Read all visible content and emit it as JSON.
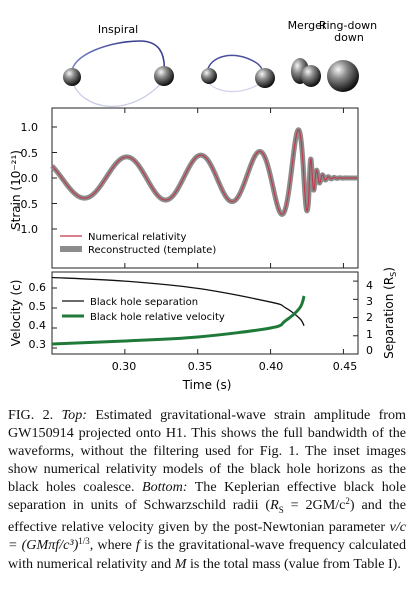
{
  "figure": {
    "insets": [
      "Inspiral",
      "Merger",
      "Ring-down"
    ],
    "top_panel": {
      "ylabel": "Strain (10⁻²¹)",
      "yticks": [
        "1.0",
        "0.5",
        "0.0",
        "-0.5",
        "-1.0"
      ],
      "legend": [
        "Numerical relativity",
        "Reconstructed (template)"
      ]
    },
    "bottom_panel": {
      "ylabel_left": "Velocity (c)",
      "ylabel_right": "Separation (R",
      "ylabel_right_sub": "S",
      "ylabel_right_end": ")",
      "yticks_left": [
        "0.6",
        "0.5",
        "0.4",
        "0.3"
      ],
      "yticks_right": [
        "4",
        "3",
        "2",
        "1",
        "0"
      ],
      "legend": [
        "Black hole separation",
        "Black hole relative velocity"
      ]
    },
    "xticks": [
      "0.30",
      "0.35",
      "0.40",
      "0.45"
    ],
    "xlabel": "Time (s)"
  },
  "caption": {
    "label": "FIG. 2.",
    "top_word": "Top:",
    "part1": "Estimated gravitational-wave strain amplitude from GW150914 projected onto H1. This shows the full bandwidth of the waveforms, without the filtering used for Fig. 1. The inset images show numerical relativity models of the black hole horizons as the black holes coalesce.",
    "bottom_word": "Bottom:",
    "part2": "The Keplerian effective black hole separation in units of Schwarzschild radii (",
    "rs_def": "R",
    "rs_sub": "S",
    "rs_eq": " = 2GM/c",
    "part3": ") and the effective relative velocity given by the post-Newtonian parameter ",
    "vc": "v/c = (GMπf/c³)",
    "exp": "1/3",
    "part4": ", where ",
    "f": "f",
    "part5": " is the gravitational-wave frequency calculated with numerical relativity and ",
    "M": "M",
    "part6": " is the total mass (value from Table I)."
  },
  "chart_data": [
    {
      "type": "line",
      "title": "",
      "xlabel": "",
      "ylabel": "Strain (10⁻²¹)",
      "xlim": [
        0.25,
        0.46
      ],
      "ylim": [
        -1.4,
        1.3
      ],
      "series": [
        {
          "name": "Numerical relativity",
          "color": "#c0384b",
          "description_points": {
            "x": [
              0.25,
              0.3,
              0.35,
              0.4,
              0.42,
              0.423,
              0.43,
              0.44,
              0.46
            ],
            "amplitude": [
              0.38,
              0.42,
              0.48,
              0.7,
              1.0,
              1.05,
              0.3,
              0.02,
              0.0
            ]
          }
        },
        {
          "name": "Reconstructed (template)",
          "color": "#8c8c8c",
          "description_points": {
            "x": [
              0.25,
              0.3,
              0.35,
              0.4,
              0.42,
              0.423,
              0.43,
              0.44,
              0.46
            ],
            "amplitude": [
              0.38,
              0.42,
              0.48,
              0.7,
              1.0,
              1.05,
              0.3,
              0.02,
              0.0
            ]
          }
        }
      ]
    },
    {
      "type": "line",
      "title": "",
      "xlabel": "Time (s)",
      "ylabel": "Velocity (c)",
      "ylabel_right": "Separation (RS)",
      "xlim": [
        0.25,
        0.46
      ],
      "ylim": [
        0.27,
        0.68
      ],
      "ylim_right": [
        0,
        4.5
      ],
      "series": [
        {
          "name": "Black hole separation",
          "color": "#111111",
          "axis": "right",
          "x": [
            0.25,
            0.3,
            0.35,
            0.4,
            0.41,
            0.42,
            0.423
          ],
          "y": [
            4.2,
            4.0,
            3.6,
            2.85,
            2.55,
            1.95,
            1.55
          ]
        },
        {
          "name": "Black hole relative velocity",
          "color": "#1f7a3a",
          "axis": "left",
          "x": [
            0.25,
            0.3,
            0.35,
            0.4,
            0.41,
            0.42,
            0.423
          ],
          "y": [
            0.32,
            0.335,
            0.355,
            0.4,
            0.435,
            0.5,
            0.56
          ]
        }
      ]
    }
  ]
}
